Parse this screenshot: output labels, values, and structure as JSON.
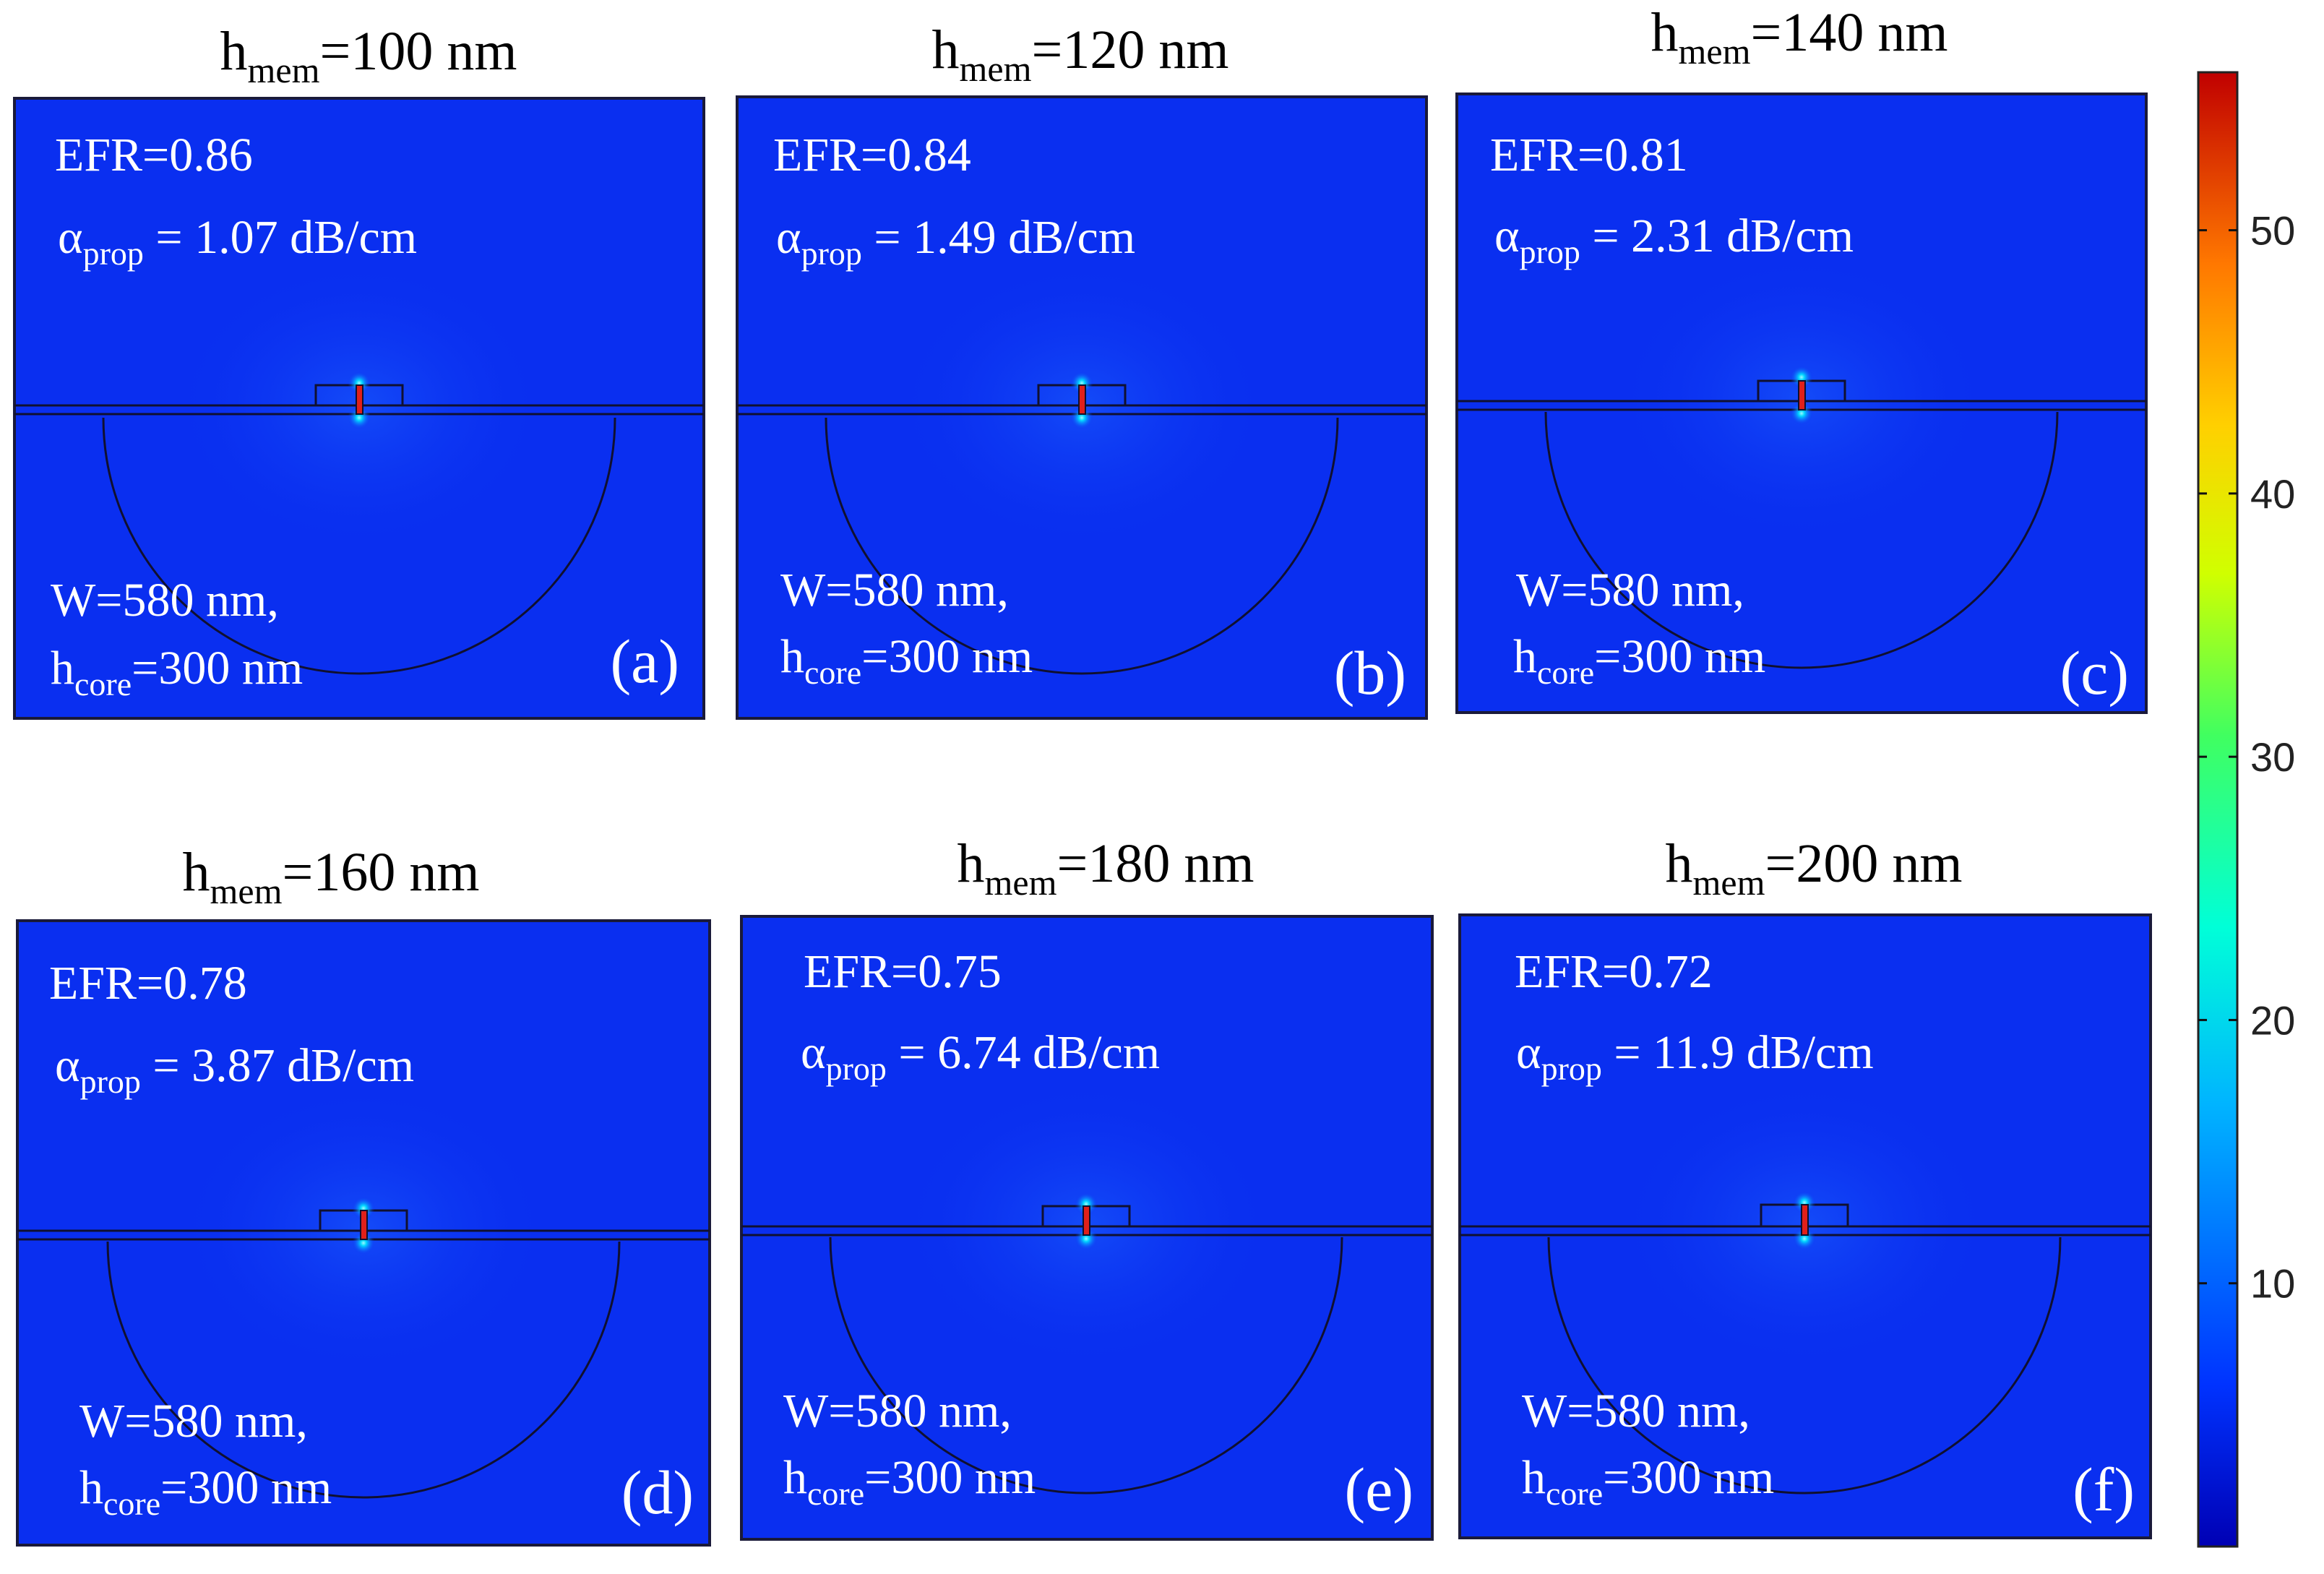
{
  "figure": {
    "panels": [
      {
        "title_main": "h",
        "title_sub": "mem",
        "title_rest": "=100 nm",
        "efr": "EFR=0.86",
        "alpha_main": "α",
        "alpha_sub": "prop",
        "alpha_rest": " = 1.07 dB/cm",
        "w_text": "W=580 nm,",
        "hcore_main": "h",
        "hcore_sub": "core",
        "hcore_rest": "=300 nm",
        "label": "(a)"
      },
      {
        "title_main": "h",
        "title_sub": "mem",
        "title_rest": "=120 nm",
        "efr": "EFR=0.84",
        "alpha_main": "α",
        "alpha_sub": "prop",
        "alpha_rest": " = 1.49 dB/cm",
        "w_text": "W=580 nm,",
        "hcore_main": "h",
        "hcore_sub": "core",
        "hcore_rest": "=300 nm",
        "label": "(b)"
      },
      {
        "title_main": "h",
        "title_sub": "mem",
        "title_rest": "=140 nm",
        "efr": "EFR=0.81",
        "alpha_main": "α",
        "alpha_sub": "prop",
        "alpha_rest": " = 2.31 dB/cm",
        "w_text": "W=580 nm,",
        "hcore_main": "h",
        "hcore_sub": "core",
        "hcore_rest": "=300 nm",
        "label": "(c)"
      },
      {
        "title_main": "h",
        "title_sub": "mem",
        "title_rest": "=160 nm",
        "efr": "EFR=0.78",
        "alpha_main": "α",
        "alpha_sub": "prop",
        "alpha_rest": " = 3.87 dB/cm",
        "w_text": "W=580 nm,",
        "hcore_main": "h",
        "hcore_sub": "core",
        "hcore_rest": "=300 nm",
        "label": "(d)"
      },
      {
        "title_main": "h",
        "title_sub": "mem",
        "title_rest": "=180 nm",
        "efr": "EFR=0.75",
        "alpha_main": "α",
        "alpha_sub": "prop",
        "alpha_rest": " = 6.74 dB/cm",
        "w_text": "W=580 nm,",
        "hcore_main": "h",
        "hcore_sub": "core",
        "hcore_rest": "=300 nm",
        "label": "(e)"
      },
      {
        "title_main": "h",
        "title_sub": "mem",
        "title_rest": "=200 nm",
        "efr": "EFR=0.72",
        "alpha_main": "α",
        "alpha_sub": "prop",
        "alpha_rest": " = 11.9 dB/cm",
        "w_text": "W=580 nm,",
        "hcore_main": "h",
        "hcore_sub": "core",
        "hcore_rest": "=300 nm",
        "label": "(f)"
      }
    ],
    "colorbar": {
      "ticks": [
        "50",
        "40",
        "30",
        "20",
        "10"
      ],
      "tick_values": [
        50,
        40,
        30,
        20,
        10
      ],
      "range": [
        0,
        56
      ]
    },
    "colors": {
      "field_background": "#0a2ff0",
      "hotspot": "#00e8ff",
      "core": "#e0201a",
      "outline": "#101030",
      "text": "#ffffff"
    }
  }
}
